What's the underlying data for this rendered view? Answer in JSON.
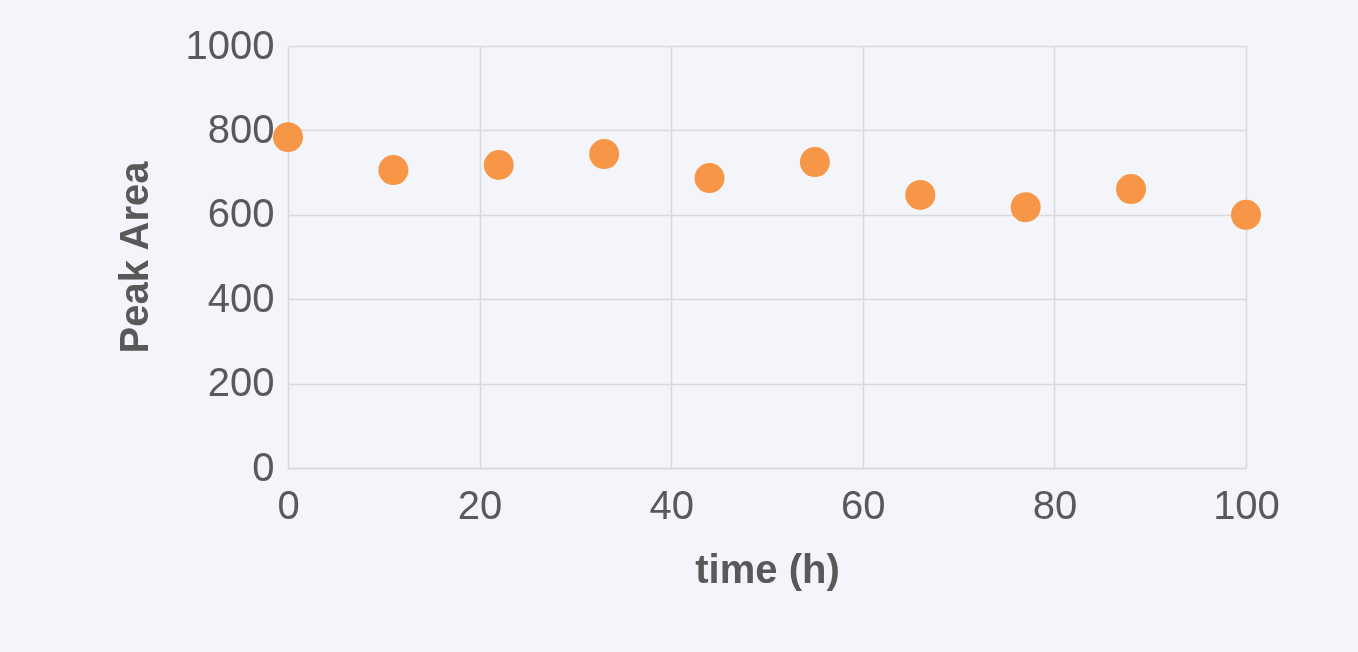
{
  "chart_data": {
    "type": "scatter",
    "xlabel": "time (h)",
    "ylabel": "Peak Area",
    "x": [
      0,
      11,
      22,
      33,
      44,
      55,
      66,
      77,
      88,
      100
    ],
    "series": [
      {
        "color": "#f79646",
        "values": [
          784,
          706,
          718,
          744,
          687,
          725,
          647,
          618,
          661,
          600
        ]
      }
    ],
    "xlim": [
      0,
      100
    ],
    "xticks": [
      0,
      20,
      40,
      60,
      80,
      100
    ],
    "ylim": [
      0,
      1000
    ],
    "yticks": [
      0,
      200,
      400,
      600,
      800,
      1000
    ],
    "grid": true,
    "legend": false,
    "marker": "circle"
  }
}
